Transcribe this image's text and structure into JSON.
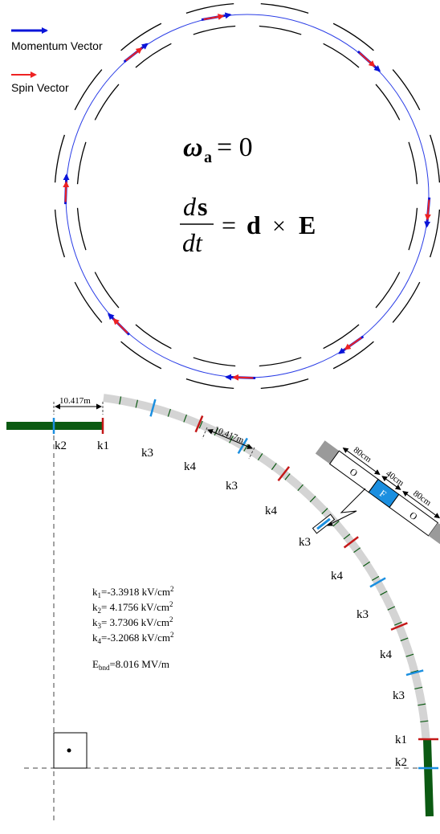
{
  "top": {
    "legend": [
      {
        "label": "Momentum Vector",
        "color": "#0a14d9"
      },
      {
        "label": "Spin Vector",
        "color": "#ee2222"
      }
    ],
    "equation1": {
      "lhs": "ω",
      "sub": "a",
      "rhs": " = 0"
    },
    "equation2": {
      "num_d": "d",
      "num_s": "s",
      "den": "dt",
      "rhs_d": "d",
      "times": "×",
      "rhs_E": "E",
      "eq": "="
    }
  },
  "bottom": {
    "dim_top": "10.417m",
    "dim_arc": "10.417m",
    "inset": {
      "left_drift": "O",
      "focus": "F",
      "right_drift": "O",
      "dim1": "80cm",
      "dim2": "40cm",
      "dim3": "80cm"
    },
    "labels": {
      "k1_top": "k1",
      "k2_top": "k2",
      "k3_a": "k3",
      "k4_a": "k4",
      "k3_b": "k3",
      "k4_b": "k4",
      "k3_c": "k3",
      "k4_c": "k4",
      "k3_d": "k3",
      "k4_d": "k4",
      "k3_e": "k3",
      "k1_bot": "k1",
      "k2_bot": "k2"
    },
    "params": [
      {
        "name": "k",
        "sub": "1",
        "value": "=-3.3918 kV/cm",
        "sup": "2"
      },
      {
        "name": "k",
        "sub": "2",
        "value": "= 4.1756 kV/cm",
        "sup": "2"
      },
      {
        "name": "k",
        "sub": "3",
        "value": "= 3.7306 kV/cm",
        "sup": "2"
      },
      {
        "name": "k",
        "sub": "4",
        "value": "=-3.2068 kV/cm",
        "sup": "2"
      }
    ],
    "ebnd": {
      "name": "E",
      "sub": "bnd",
      "value": "=8.016 MV/m"
    },
    "colors": {
      "k1": "#c41818",
      "k2": "#1b8fe0",
      "k3": "#1b8fe0",
      "k4": "#c41818",
      "green": "#0b5a12",
      "arc": "#d4d4d4"
    }
  }
}
